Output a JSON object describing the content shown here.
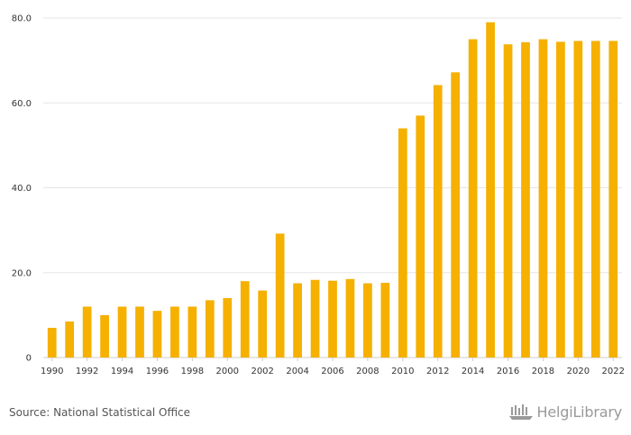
{
  "chart_data": {
    "type": "bar",
    "title": "",
    "xlabel": "",
    "ylabel": "",
    "ylim": [
      0,
      80
    ],
    "y_ticks": [
      "0",
      "20.0",
      "40.0",
      "60.0",
      "80.0"
    ],
    "y_tick_values": [
      0,
      20,
      40,
      60,
      80
    ],
    "x_tick_labels": [
      "1990",
      "1992",
      "1994",
      "1996",
      "1998",
      "2000",
      "2002",
      "2004",
      "2006",
      "2008",
      "2010",
      "2012",
      "2014",
      "2016",
      "2018",
      "2020",
      "2022"
    ],
    "grid": "horizontal",
    "legend": "none",
    "bar_color": "#F5B000",
    "categories": [
      "1990",
      "1991",
      "1992",
      "1993",
      "1994",
      "1995",
      "1996",
      "1997",
      "1998",
      "1999",
      "2000",
      "2001",
      "2002",
      "2003",
      "2004",
      "2005",
      "2006",
      "2007",
      "2008",
      "2009",
      "2010",
      "2011",
      "2012",
      "2013",
      "2014",
      "2015",
      "2016",
      "2017",
      "2018",
      "2019",
      "2020",
      "2021",
      "2022"
    ],
    "values": [
      7.0,
      8.5,
      12.0,
      10.0,
      12.0,
      12.0,
      11.0,
      12.0,
      12.0,
      13.5,
      14.0,
      18.0,
      15.8,
      29.2,
      17.5,
      18.3,
      18.1,
      18.5,
      17.5,
      17.6,
      54.0,
      57.0,
      64.2,
      67.2,
      75.0,
      79.0,
      73.8,
      74.3,
      75.0,
      74.4,
      74.6,
      74.6,
      74.6
    ]
  },
  "footer": {
    "source": "Source: National Statistical Office",
    "brand": "HelgiLibrary"
  },
  "colors": {
    "bar": "#F5B000",
    "grid": "#e6e6e6",
    "axis": "#cccccc",
    "text": "#333333",
    "brand": "#9a9a9a"
  }
}
